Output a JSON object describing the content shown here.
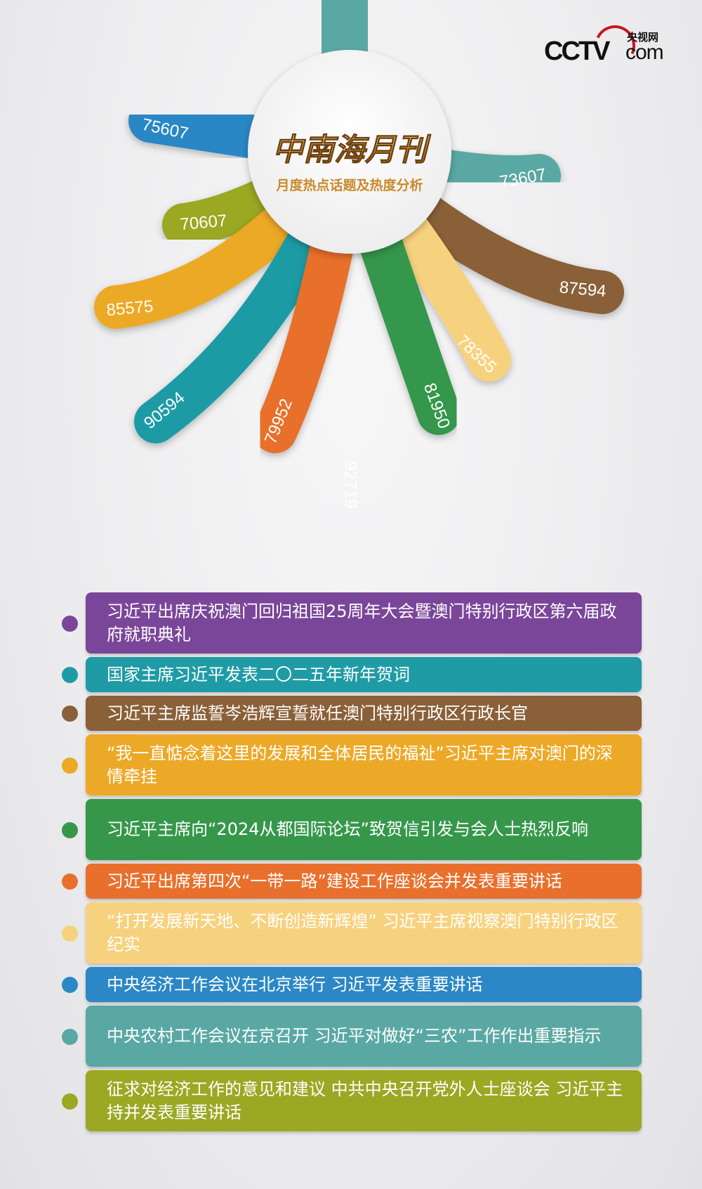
{
  "logo": {
    "brand": "CCTV",
    "domain": "com",
    "chinese": "央视网"
  },
  "header": {
    "title": "中南海月刊",
    "subtitle": "月度热点话题及热度分析"
  },
  "chart_data": {
    "type": "radial-bar",
    "title": "中南海月刊",
    "subtitle": "月度热点话题及热度分析",
    "categories": [
      "习近平出席庆祝澳门回归祖国25周年大会暨澳门特别行政区第六届政府就职典礼",
      "国家主席习近平发表二〇二五年新年贺词",
      "习近平主席监誓岑浩辉宣誓就任澳门特别行政区行政长官",
      "“我一直惦念着这里的发展和全体居民的福祉”习近平主席对澳门的深情牵挂",
      "习近平主席向“2024从都国际论坛”致贺信引发与会人士热烈反响",
      "习近平出席第四次“一带一路”建设工作座谈会并发表重要讲话",
      "“打开发展新天地、不断创造新辉煌” 习近平主席视察澳门特别行政区纪实",
      "中央经济工作会议在北京举行 习近平发表重要讲话",
      "中央农村工作会议在京召开 习近平对做好“三农”工作作出重要指示",
      "征求对经济工作的意见和建议 中共中央召开党外人士座谈会 习近平主持并发表重要讲话"
    ],
    "values": [
      92719,
      90594,
      87594,
      85575,
      81950,
      79952,
      78355,
      75607,
      73607,
      70607
    ],
    "labels": [
      "92719",
      "90594",
      "87594",
      "85575",
      "81950",
      "79952",
      "78355",
      "75607",
      "73607",
      "70607"
    ],
    "colors": [
      "#7a4699",
      "#1f9ba5",
      "#8a6038",
      "#eca927",
      "#36974b",
      "#e8702c",
      "#f7d27e",
      "#2b87c5",
      "#5aa8a3",
      "#9aa823"
    ],
    "legend": "bottom"
  }
}
